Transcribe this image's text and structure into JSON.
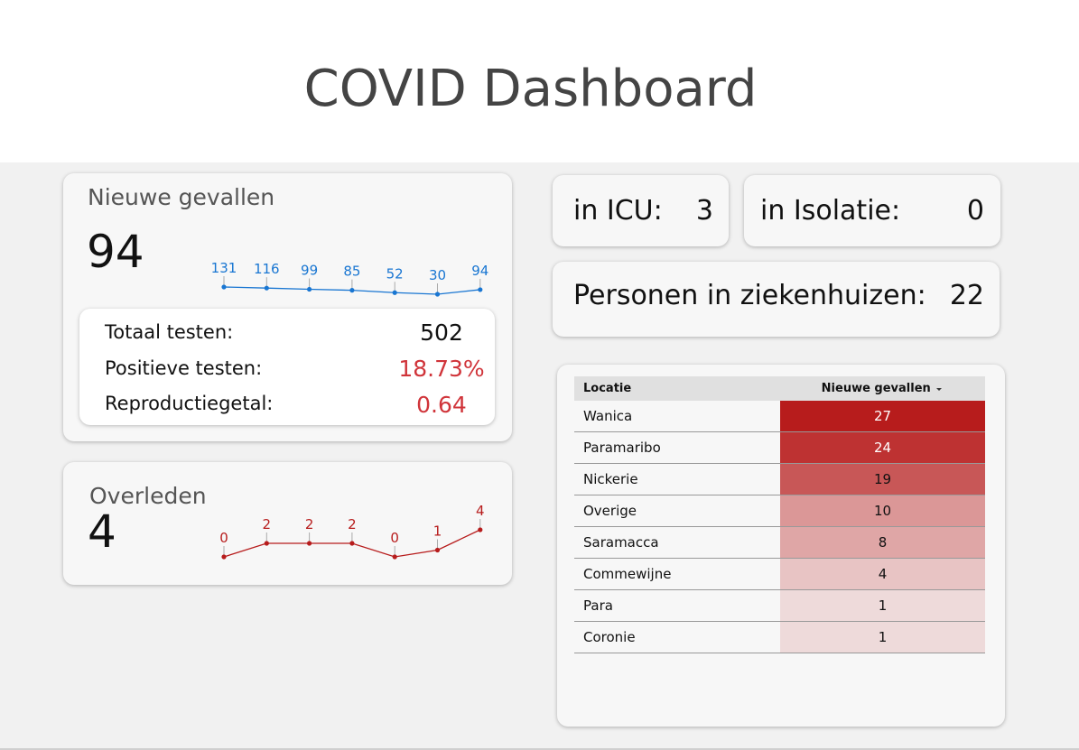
{
  "header": {
    "title": "COVID Dashboard"
  },
  "new_cases": {
    "title": "Nieuwe gevallen",
    "value": 94,
    "trend": [
      131,
      116,
      99,
      85,
      52,
      30,
      94
    ]
  },
  "tests": {
    "rows": [
      {
        "label": "Totaal testen:",
        "value": "502"
      },
      {
        "label": "Positieve testen:",
        "value": "18.73%"
      },
      {
        "label": "Reproductiegetal:",
        "value": "0.64"
      }
    ]
  },
  "deaths": {
    "title": "Overleden",
    "value": 4,
    "trend": [
      0,
      2,
      2,
      2,
      0,
      1,
      4
    ]
  },
  "icu": {
    "label": "in ICU:",
    "value": 3
  },
  "isolation": {
    "label": "in Isolatie:",
    "value": 0
  },
  "hospital": {
    "label": "Personen in ziekenhuizen:",
    "value": 22
  },
  "table": {
    "headers": [
      "Locatie",
      "Nieuwe gevallen"
    ],
    "rows": [
      [
        "Wanica",
        27
      ],
      [
        "Paramaribo",
        24
      ],
      [
        "Nickerie",
        19
      ],
      [
        "Overige",
        10
      ],
      [
        "Saramacca",
        8
      ],
      [
        "Commewijne",
        4
      ],
      [
        "Para",
        1
      ],
      [
        "Coronie",
        1
      ]
    ]
  }
}
